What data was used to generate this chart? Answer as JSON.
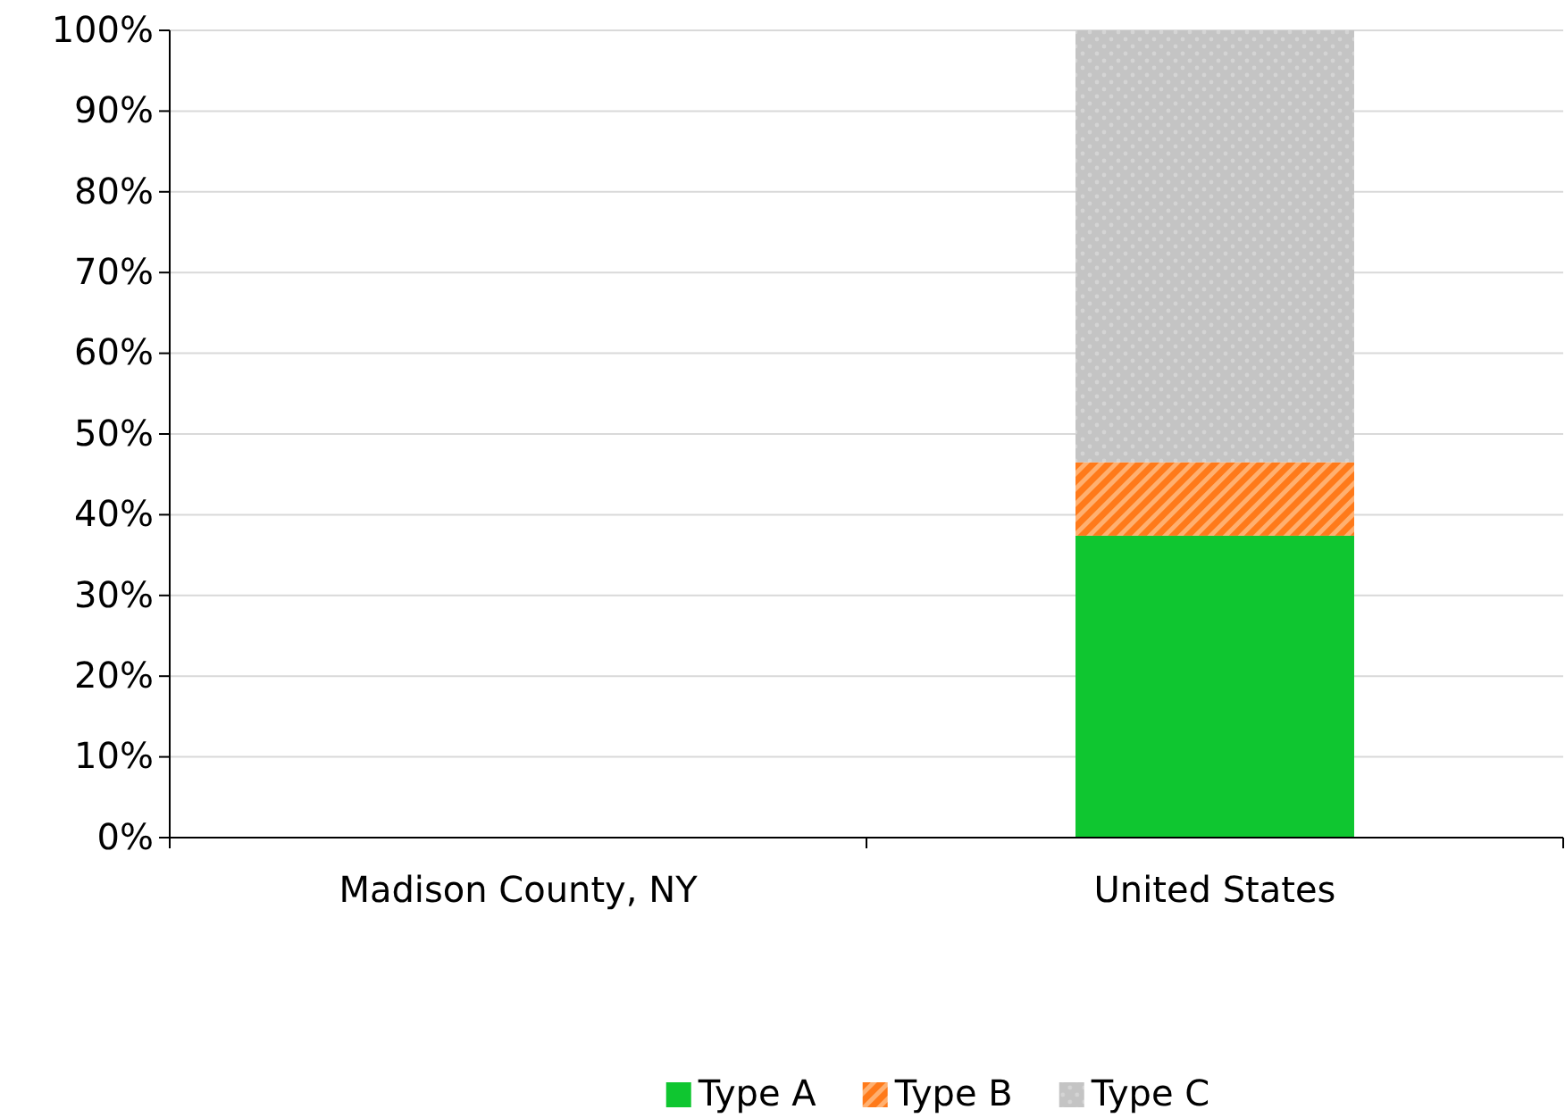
{
  "chart_data": {
    "type": "bar",
    "stacked": true,
    "categories": [
      "Madison County, NY",
      "United States"
    ],
    "series": [
      {
        "name": "Type A",
        "color": "#0fc630",
        "values": [
          null,
          37.4
        ]
      },
      {
        "name": "Type B",
        "color": "#ff7a1a",
        "values": [
          null,
          9.1
        ]
      },
      {
        "name": "Type C",
        "color": "#c4c4c4",
        "values": [
          null,
          53.5
        ]
      }
    ],
    "ylim": [
      0,
      100
    ],
    "yticks": [
      {
        "value": 0,
        "label": "0%"
      },
      {
        "value": 10,
        "label": "10%"
      },
      {
        "value": 20,
        "label": "20%"
      },
      {
        "value": 30,
        "label": "30%"
      },
      {
        "value": 40,
        "label": "40%"
      },
      {
        "value": 50,
        "label": "50%"
      },
      {
        "value": 60,
        "label": "60%"
      },
      {
        "value": 70,
        "label": "70%"
      },
      {
        "value": 80,
        "label": "80%"
      },
      {
        "value": 90,
        "label": "90%"
      },
      {
        "value": 100,
        "label": "100%"
      }
    ],
    "grid": "y",
    "legend": "bottom"
  }
}
